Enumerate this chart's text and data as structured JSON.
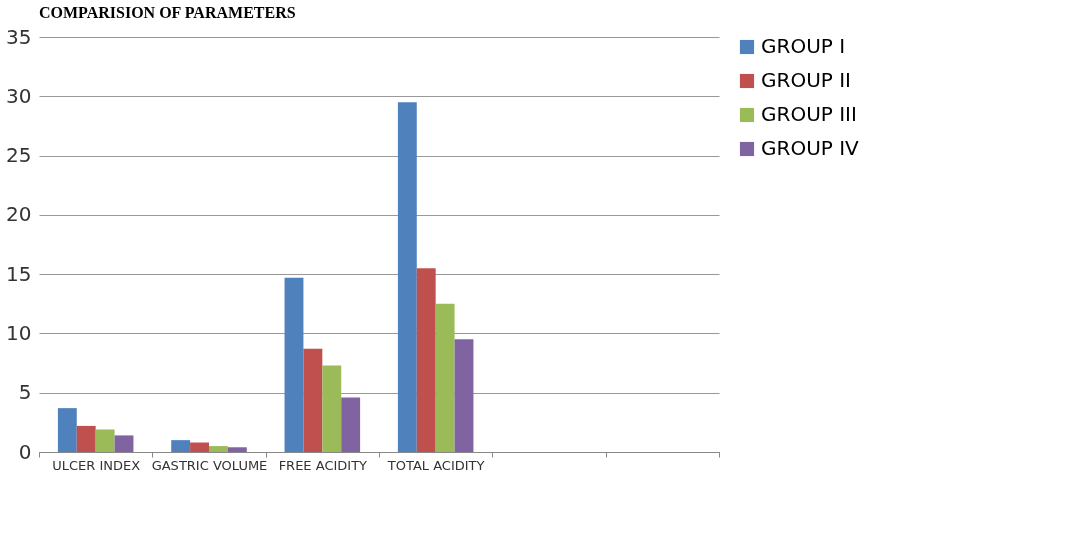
{
  "chart_data": {
    "type": "bar",
    "title": "COMPARISION OF PARAMETERS",
    "categories": [
      "ULCER INDEX",
      "GASTRIC VOLUME",
      "FREE ACIDITY",
      "TOTAL ACIDITY",
      null,
      null
    ],
    "series": [
      {
        "name": "GROUP I",
        "color": "#4f81bd",
        "values": [
          3.7,
          1.0,
          14.7,
          29.5,
          null,
          null
        ]
      },
      {
        "name": "GROUP II",
        "color": "#c0504d",
        "values": [
          2.2,
          0.8,
          8.7,
          15.5,
          null,
          null
        ]
      },
      {
        "name": "GROUP III",
        "color": "#9bbb59",
        "values": [
          1.9,
          0.5,
          7.3,
          12.5,
          null,
          null
        ]
      },
      {
        "name": "GROUP IV",
        "color": "#8064a2",
        "values": [
          1.4,
          0.4,
          4.6,
          9.5,
          null,
          null
        ]
      }
    ],
    "ylim": [
      0,
      35
    ],
    "yticks": [
      0,
      5,
      10,
      15,
      20,
      25,
      30,
      35
    ],
    "grid": "y",
    "legend": "right"
  }
}
